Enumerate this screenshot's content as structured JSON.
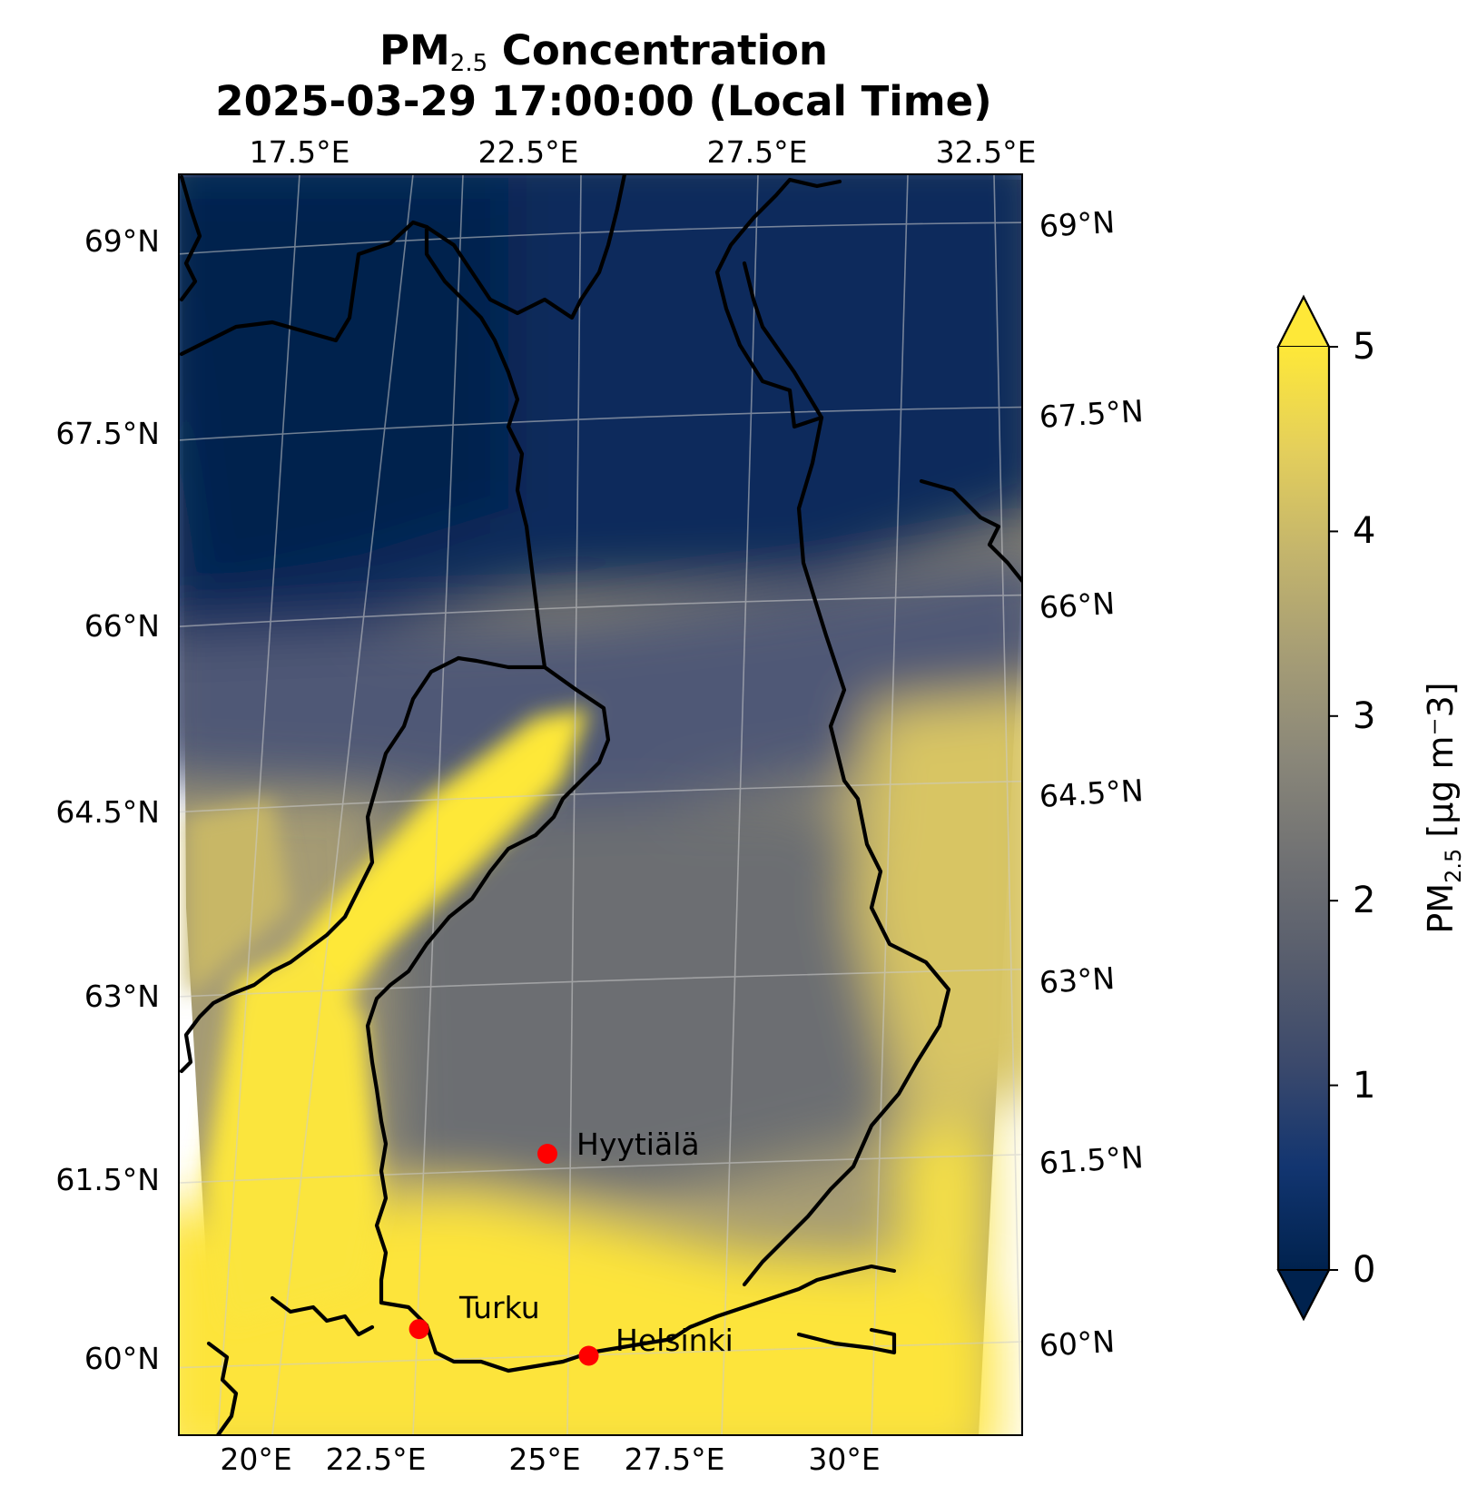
{
  "title": {
    "line1_prefix": "PM",
    "line1_sub": "2.5",
    "line1_suffix": " Concentration",
    "line2": "2025-03-29 17:00:00 (Local Time)"
  },
  "lon_ticks_top": [
    "17.5°E",
    "22.5°E",
    "27.5°E",
    "32.5°E"
  ],
  "lon_ticks_bottom": [
    "20°E",
    "22.5°E",
    "25°E",
    "27.5°E",
    "30°E"
  ],
  "lat_ticks_left": [
    "69°N",
    "67.5°N",
    "66°N",
    "64.5°N",
    "63°N",
    "61.5°N",
    "60°N"
  ],
  "lat_ticks_right": [
    "69°N",
    "67.5°N",
    "66°N",
    "64.5°N",
    "63°N",
    "61.5°N",
    "60°N"
  ],
  "sites": [
    {
      "name": "Hyytiälä",
      "lat": 61.85,
      "lon": 24.29
    },
    {
      "name": "Turku",
      "lat": 60.45,
      "lon": 22.27
    },
    {
      "name": "Helsinki",
      "lat": 60.17,
      "lon": 24.94
    }
  ],
  "colorbar": {
    "label_prefix": "PM",
    "label_sub": "2.5",
    "label_suffix": " [µg m⁻3]",
    "ticks": [
      "0",
      "1",
      "2",
      "3",
      "4",
      "5"
    ],
    "min": 0,
    "max": 5,
    "extend": "both",
    "colormap": "cividis",
    "colors": [
      "#00224e",
      "#123570",
      "#3b496c",
      "#575d6d",
      "#707173",
      "#8a8779",
      "#a69d75",
      "#c4b56c",
      "#e4cf5b",
      "#fee838"
    ]
  },
  "colors": {
    "site_marker": "#ff0000",
    "border": "#000000",
    "gridline": "#cccccc"
  }
}
